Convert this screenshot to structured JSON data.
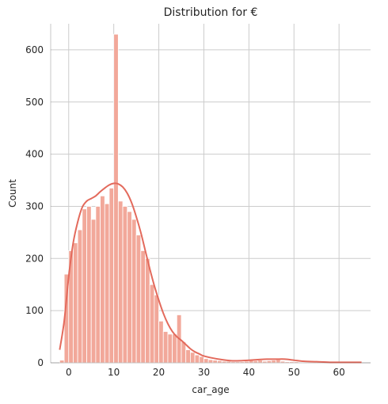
{
  "chart_data": {
    "type": "bar",
    "title": "Distribution for €",
    "xlabel": "car_age",
    "ylabel": "Count",
    "xlim": [
      -4,
      67
    ],
    "ylim": [
      0,
      650
    ],
    "xticks": [
      0,
      10,
      20,
      30,
      40,
      50,
      60
    ],
    "yticks": [
      0,
      100,
      200,
      300,
      400,
      500,
      600
    ],
    "grid": true,
    "colors": {
      "bar": "#f2a89a",
      "kde": "#e36a5c"
    },
    "bin_start": -2,
    "bin_width": 1,
    "values": [
      5,
      170,
      215,
      230,
      255,
      295,
      300,
      275,
      300,
      320,
      305,
      335,
      630,
      310,
      300,
      290,
      275,
      245,
      215,
      200,
      150,
      130,
      80,
      60,
      55,
      55,
      92,
      40,
      25,
      20,
      15,
      12,
      8,
      6,
      5,
      4,
      3,
      3,
      2,
      2,
      2,
      3,
      5,
      4,
      5,
      3,
      4,
      5,
      6,
      3,
      2,
      2,
      2,
      1,
      1,
      1,
      1,
      1,
      1,
      1,
      1,
      1,
      1,
      1,
      1,
      1,
      1
    ],
    "kde": {
      "x": [
        -2,
        -1,
        0,
        1,
        2,
        3,
        4,
        5,
        6,
        7,
        8,
        9,
        10,
        11,
        12,
        13,
        14,
        15,
        16,
        17,
        18,
        19,
        20,
        21,
        22,
        23,
        24,
        25,
        26,
        27,
        28,
        29,
        30,
        32,
        34,
        36,
        38,
        40,
        42,
        44,
        46,
        48,
        50,
        52,
        55,
        58,
        62,
        65
      ],
      "y": [
        25,
        80,
        165,
        230,
        270,
        298,
        310,
        315,
        320,
        328,
        335,
        341,
        344,
        343,
        337,
        325,
        306,
        280,
        250,
        215,
        180,
        148,
        120,
        95,
        75,
        60,
        50,
        43,
        35,
        27,
        21,
        17,
        13,
        9,
        6,
        4,
        4,
        5,
        6,
        7,
        7,
        7,
        5,
        3,
        2,
        1,
        1,
        1
      ]
    }
  }
}
